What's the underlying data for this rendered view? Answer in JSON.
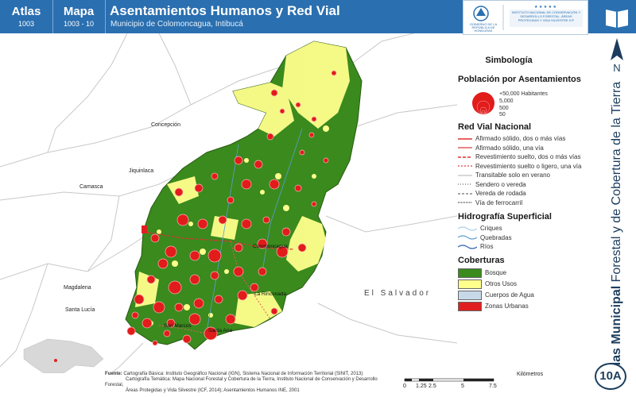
{
  "header": {
    "atlas_label": "Atlas",
    "atlas_number": "1003",
    "map_label": "Mapa",
    "map_number": "1003 - 10",
    "title": "Asentamientos Humanos y Red Vial",
    "subtitle": "Municipio de Colomoncagua, Intibucá",
    "logo_left_text": "GOBIERNO DE LA REPÚBLICA DE HONDURAS",
    "logo_right_text": "INSTITUTO NACIONAL DE CONSERVACIÓN Y DESARROLLO FORESTAL, ÁREAS PROTEGIDAS Y VIDA SILVESTRE ICF"
  },
  "side": {
    "north_label": "N",
    "vertical_title_bold": "Atlas Municipal",
    "vertical_title_rest": " Forestal y de Cobertura de la Tierra",
    "badge": "10A"
  },
  "map": {
    "places": [
      {
        "name": "Concepción"
      },
      {
        "name": "Jiquinlaca"
      },
      {
        "name": "Camasca"
      },
      {
        "name": "Magdalena"
      },
      {
        "name": "Santa Lucía"
      },
      {
        "name": "El Salvador"
      }
    ],
    "towns": [
      {
        "name": "Colomoncagua"
      },
      {
        "name": "La Rinconada"
      },
      {
        "name": "San Marcos"
      },
      {
        "name": "Santa Ana"
      }
    ]
  },
  "legend": {
    "title": "Simbología",
    "population_title": "Población por Asentamientos",
    "population_levels": [
      "+50,000 Habitantes",
      "5,000",
      "500",
      "50"
    ],
    "road_title": "Red Vial Nacional",
    "roads": [
      {
        "label": "Afirmado sólido, dos o más vías",
        "color": "#e03030",
        "dash": ""
      },
      {
        "label": "Afirmado sólido, una vía",
        "color": "#e06060",
        "dash": ""
      },
      {
        "label": "Revestimiento suelto, dos o más vías",
        "color": "#e03030",
        "dash": "4,2"
      },
      {
        "label": "Revestimiento suelto o ligero, una vía",
        "color": "#e06060",
        "dash": "2,2"
      },
      {
        "label": "Transitable solo en verano",
        "color": "#cccccc",
        "dash": ""
      },
      {
        "label": "Sendero o vereda",
        "color": "#888888",
        "dash": "1,2"
      },
      {
        "label": "Vereda de rodada",
        "color": "#888888",
        "dash": "3,2"
      },
      {
        "label": "Vía de ferrocarril",
        "color": "#555555",
        "dash": "1,1"
      }
    ],
    "hydro_title": "Hidrografía Superficial",
    "hydro": [
      {
        "label": "Criques",
        "color": "#a8d0e8"
      },
      {
        "label": "Quebradas",
        "color": "#5aa0d0"
      },
      {
        "label": "Ríos",
        "color": "#2a5fb0"
      }
    ],
    "cover_title": "Coberturas",
    "covers": [
      {
        "label": "Bosque",
        "color": "#3a8a1e"
      },
      {
        "label": "Otros Usos",
        "color": "#ffff8c"
      },
      {
        "label": "Cuerpos de Agua",
        "color": "#c7d9e8"
      },
      {
        "label": "Zonas Urbanas",
        "color": "#e02020"
      }
    ]
  },
  "source": {
    "label": "Fuente:",
    "lines": [
      "Cartografía Básica: Instituto Geográfico Nacional (IGN), Sistema Nacional de Información Territorial (SINIT, 2013)",
      "Cartografía Temática: Mapa Nacional Forestal y Cobertura de la Tierra, Instituto Nacional de Conservación y Desarrollo Forestal,",
      "Áreas Protegidas y Vida Silvestre (ICF, 2014); Asentamientos Humanos INE, 2001"
    ]
  },
  "scale": {
    "unit": "Kilómetros",
    "ticks": [
      "0",
      "1.25",
      "2.5",
      "5",
      "7.5"
    ]
  },
  "colors": {
    "header_blue": "#2a6fb0",
    "forest": "#3a8a1e",
    "other_use": "#ffff8c",
    "settlement": "#e02020"
  }
}
